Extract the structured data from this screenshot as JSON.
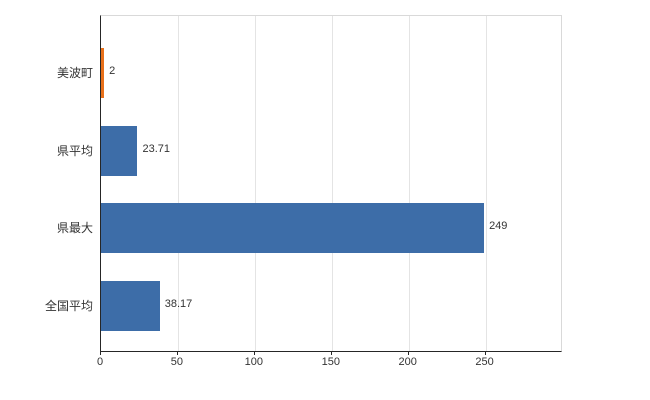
{
  "chart_data": {
    "type": "bar",
    "orientation": "horizontal",
    "title": "",
    "xlabel": "",
    "ylabel": "",
    "categories": [
      "美波町",
      "県平均",
      "県最大",
      "全国平均"
    ],
    "values": [
      2,
      23.71,
      249,
      38.17
    ],
    "value_labels": [
      "2",
      "23.71",
      "249",
      "38.17"
    ],
    "bar_colors": [
      "#e8701a",
      "#3d6da8",
      "#3d6da8",
      "#3d6da8"
    ],
    "xticks": [
      0,
      50,
      100,
      150,
      200,
      250
    ],
    "xlim": [
      0,
      299
    ],
    "grid": true,
    "legend_position": "none"
  },
  "colors": {
    "background": "#ffffff",
    "grid": "#e4e4e4",
    "axis": "#262626",
    "text": "#333333",
    "bar_blue": "#3d6da8",
    "bar_orange": "#e8701a"
  }
}
